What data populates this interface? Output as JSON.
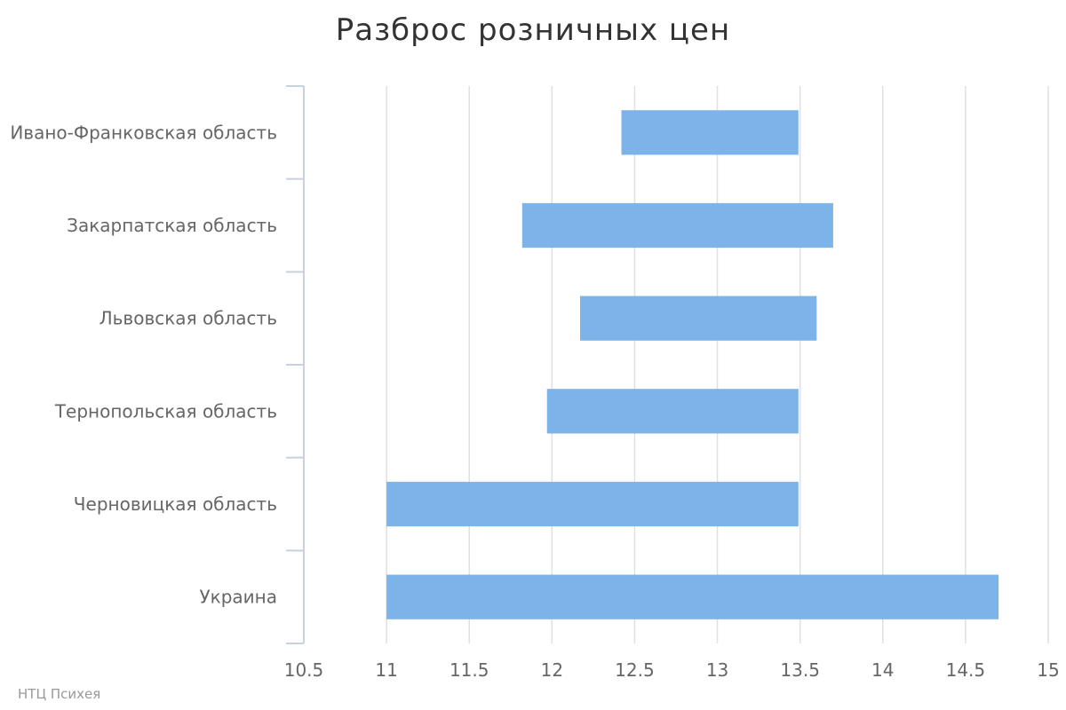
{
  "chart_data": {
    "type": "bar",
    "orientation": "horizontal-range",
    "title": "Разброс розничных цен",
    "categories": [
      "Ивано-Франковская область",
      "Закарпатская область",
      "Львовская область",
      "Тернопольская область",
      "Черновицкая область",
      "Украина"
    ],
    "series": [
      {
        "low": [
          12.42,
          11.82,
          12.17,
          11.97,
          11.0,
          11.0
        ],
        "high": [
          13.49,
          13.7,
          13.6,
          13.49,
          13.49,
          14.7
        ]
      }
    ],
    "xlim": [
      10.5,
      15
    ],
    "xticks": [
      "10.5",
      "11",
      "11.5",
      "12",
      "12.5",
      "13",
      "13.5",
      "14",
      "14.5",
      "15"
    ],
    "grid": true,
    "colors": {
      "bar": "#7cb4ea",
      "grid": "#e0e0e0",
      "axis": "#c8d2de"
    }
  },
  "credit": "НТЦ Психея"
}
